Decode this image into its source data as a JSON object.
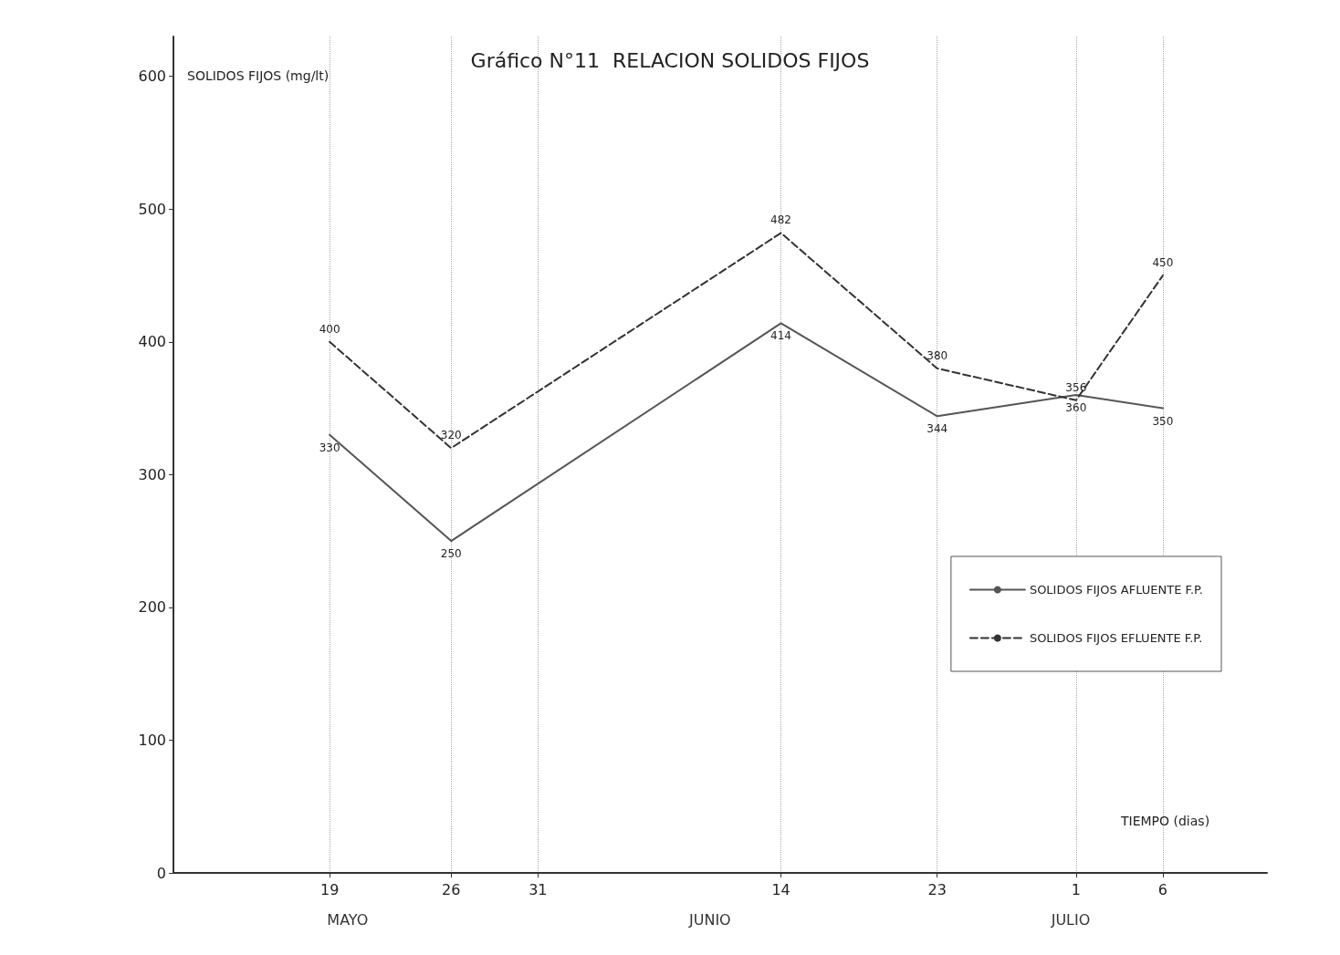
{
  "chart_data": {
    "type": "line",
    "title": "Gráfico N°11  RELACION SOLIDOS FIJOS",
    "xlabel": "TIEMPO (dias)",
    "ylabel": "SOLIDOS FIJOS (mg/lt)",
    "x": [
      "--05-19",
      "--05-26",
      "--06-14",
      "--06-23",
      "--07-01",
      "--07-06"
    ],
    "series": [
      {
        "name": "SOLIDOS FIJOS AFLUENTE F.P.",
        "color": "#555555",
        "line_style": "solid",
        "values": [
          330,
          250,
          414,
          344,
          360,
          350
        ]
      },
      {
        "name": "SOLIDOS FIJOS EFLUENTE F.P.",
        "color": "#333333",
        "line_style": "dashed",
        "values": [
          400,
          320,
          482,
          380,
          356,
          450
        ]
      }
    ],
    "xlim": [
      "--05-10",
      "--07-12"
    ],
    "xticks": [
      {
        "value": "--05-19",
        "label": "19"
      },
      {
        "value": "--05-26",
        "label": "26"
      },
      {
        "value": "--05-31",
        "label": "31"
      },
      {
        "value": "--06-14",
        "label": "14"
      },
      {
        "value": "--06-23",
        "label": "23"
      },
      {
        "value": "--07-01",
        "label": "1"
      },
      {
        "value": "--07-06",
        "label": "6"
      }
    ],
    "ylim": [
      0,
      630
    ],
    "yticks": [
      0,
      100,
      200,
      300,
      400,
      500,
      600
    ],
    "annotations": [
      "MAYO",
      "JUNIO",
      "JULIO"
    ],
    "grid": "x",
    "legend": "right",
    "marker": "none",
    "data_labels": true
  }
}
